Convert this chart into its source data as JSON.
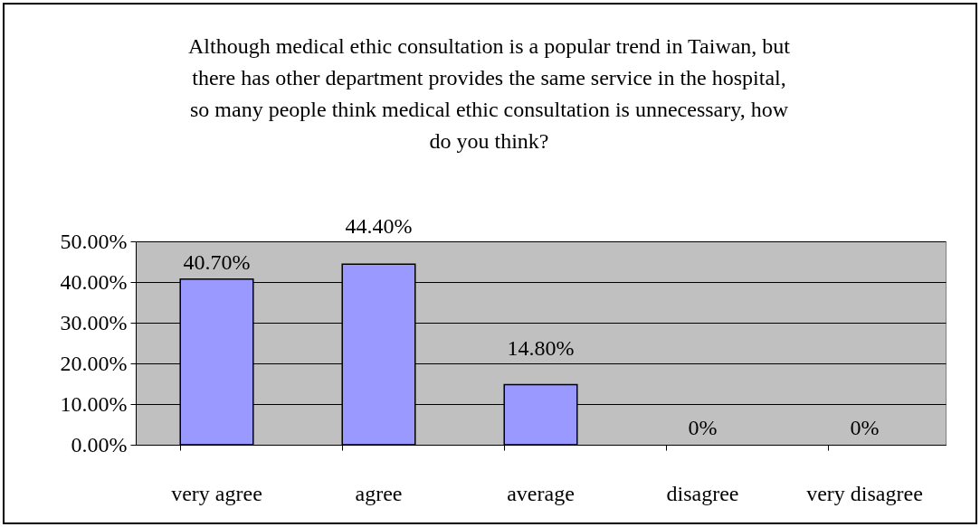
{
  "chart_data": {
    "type": "bar",
    "title": "Although medical ethic consultation is a popular trend in Taiwan, but there has other department provides the same service in the hospital, so many people think medical ethic consultation is unnecessary, how do you think?",
    "categories": [
      "very agree",
      "agree",
      "average",
      "disagree",
      "very disagree"
    ],
    "values": [
      40.7,
      44.4,
      14.8,
      0,
      0
    ],
    "value_labels": [
      "40.70%",
      "44.40%",
      "14.80%",
      "0%",
      "0%"
    ],
    "color": "#9999ff",
    "ylim": [
      0,
      50
    ],
    "yticks": [
      {
        "value": 0,
        "label": "0.00%"
      },
      {
        "value": 10,
        "label": "10.00%"
      },
      {
        "value": 20,
        "label": "20.00%"
      },
      {
        "value": 30,
        "label": "30.00%"
      },
      {
        "value": 40,
        "label": "40.00%"
      },
      {
        "value": 50,
        "label": "50.00%"
      }
    ],
    "grid": "y"
  }
}
